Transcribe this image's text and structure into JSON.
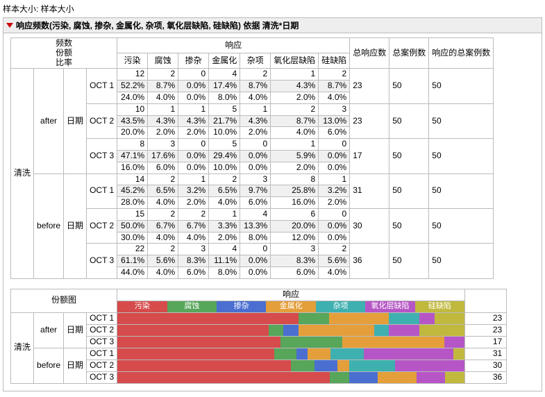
{
  "sample_label": "样本大小: 样本大小",
  "section_title": "响应频数(污染, 腐蚀, 掺杂, 金属化, 杂项, 氧化层缺陷, 硅缺陷) 依据 清洗*日期",
  "hdr": {
    "freq": "频数",
    "share": "份额",
    "ratio": "比率",
    "response": "响应",
    "clean": "清洗",
    "date": "日期",
    "share_chart": "份额图",
    "total_resp": "总响应数",
    "total_cases": "总案例数",
    "total_cases_resp": "响应的总案例数"
  },
  "groups": [
    "after",
    "before"
  ],
  "cats": [
    "污染",
    "腐蚀",
    "掺杂",
    "金属化",
    "杂项",
    "氧化层缺陷",
    "硅缺陷"
  ],
  "colors": {
    "污染": "#d64b4b",
    "腐蚀": "#57a65a",
    "掺杂": "#4a6fd1",
    "金属化": "#e49f3a",
    "杂项": "#3fb0b0",
    "氧化层缺陷": "#b656c6",
    "硅缺陷": "#c1b93e"
  },
  "dates": [
    "OCT 1",
    "OCT 2",
    "OCT 3"
  ],
  "main": {
    "after": {
      "OCT 1": {
        "counts": [
          12,
          2,
          0,
          4,
          2,
          1,
          2
        ],
        "pct": [
          "52.2%",
          "8.7%",
          "0.0%",
          "17.4%",
          "8.7%",
          "4.3%",
          "8.7%"
        ],
        "row": [
          "24.0%",
          "4.0%",
          "0.0%",
          "8.0%",
          "4.0%",
          "2.0%",
          "4.0%"
        ],
        "tr": "23",
        "tc": "50",
        "tcr": "50"
      },
      "OCT 2": {
        "counts": [
          10,
          1,
          1,
          5,
          1,
          2,
          3
        ],
        "pct": [
          "43.5%",
          "4.3%",
          "4.3%",
          "21.7%",
          "4.3%",
          "8.7%",
          "13.0%"
        ],
        "row": [
          "20.0%",
          "2.0%",
          "2.0%",
          "10.0%",
          "2.0%",
          "4.0%",
          "6.0%"
        ],
        "tr": "23",
        "tc": "50",
        "tcr": "50"
      },
      "OCT 3": {
        "counts": [
          8,
          3,
          0,
          5,
          0,
          1,
          0
        ],
        "pct": [
          "47.1%",
          "17.6%",
          "0.0%",
          "29.4%",
          "0.0%",
          "5.9%",
          "0.0%"
        ],
        "row": [
          "16.0%",
          "6.0%",
          "0.0%",
          "10.0%",
          "0.0%",
          "2.0%",
          "0.0%"
        ],
        "tr": "17",
        "tc": "50",
        "tcr": "50"
      }
    },
    "before": {
      "OCT 1": {
        "counts": [
          14,
          2,
          1,
          2,
          3,
          8,
          1
        ],
        "pct": [
          "45.2%",
          "6.5%",
          "3.2%",
          "6.5%",
          "9.7%",
          "25.8%",
          "3.2%"
        ],
        "row": [
          "28.0%",
          "4.0%",
          "2.0%",
          "4.0%",
          "6.0%",
          "16.0%",
          "2.0%"
        ],
        "tr": "31",
        "tc": "50",
        "tcr": "50"
      },
      "OCT 2": {
        "counts": [
          15,
          2,
          2,
          1,
          4,
          6,
          0
        ],
        "pct": [
          "50.0%",
          "6.7%",
          "6.7%",
          "3.3%",
          "13.3%",
          "20.0%",
          "0.0%"
        ],
        "row": [
          "30.0%",
          "4.0%",
          "4.0%",
          "2.0%",
          "8.0%",
          "12.0%",
          "0.0%"
        ],
        "tr": "30",
        "tc": "50",
        "tcr": "50"
      },
      "OCT 3": {
        "counts": [
          22,
          2,
          3,
          4,
          0,
          3,
          2
        ],
        "pct": [
          "61.1%",
          "5.6%",
          "8.3%",
          "11.1%",
          "0.0%",
          "8.3%",
          "5.6%"
        ],
        "row": [
          "44.0%",
          "4.0%",
          "6.0%",
          "8.0%",
          "0.0%",
          "6.0%",
          "4.0%"
        ],
        "tr": "36",
        "tc": "50",
        "tcr": "50"
      }
    }
  }
}
